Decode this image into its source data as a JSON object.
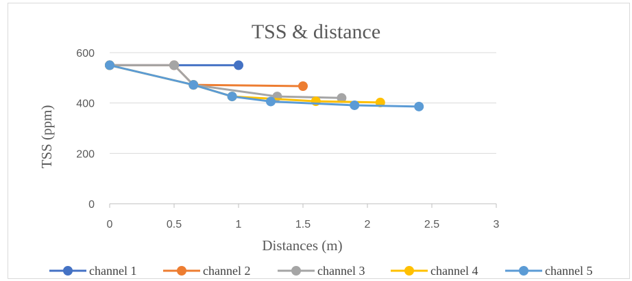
{
  "chart_data": {
    "type": "line",
    "title": "TSS & distance",
    "xlabel": "Distances (m)",
    "ylabel": "TSS (ppm)",
    "xlim": [
      0,
      3
    ],
    "ylim": [
      0,
      600
    ],
    "x_ticks": [
      "0",
      "0.5",
      "1",
      "1.5",
      "2",
      "2.5",
      "3"
    ],
    "y_ticks": [
      "0",
      "200",
      "400",
      "600"
    ],
    "grid": "horizontal",
    "legend": "bottom",
    "series": [
      {
        "name": "channel 1",
        "color": "#4472c4",
        "points": [
          [
            0,
            550
          ],
          [
            0.5,
            550
          ],
          [
            1,
            550
          ]
        ]
      },
      {
        "name": "channel 2",
        "color": "#ed7d31",
        "points": [
          [
            0,
            550
          ],
          [
            0.5,
            550
          ],
          [
            0.65,
            472
          ],
          [
            1.5,
            467
          ]
        ]
      },
      {
        "name": "channel 3",
        "color": "#a5a5a5",
        "points": [
          [
            0,
            550
          ],
          [
            0.5,
            550
          ],
          [
            0.65,
            472
          ],
          [
            1.3,
            426
          ],
          [
            1.8,
            420
          ]
        ]
      },
      {
        "name": "channel 4",
        "color": "#ffc000",
        "points": [
          [
            0,
            550
          ],
          [
            0.65,
            472
          ],
          [
            0.95,
            426
          ],
          [
            1.6,
            407
          ],
          [
            2.1,
            402
          ]
        ]
      },
      {
        "name": "channel 5",
        "color": "#5b9bd5",
        "points": [
          [
            0,
            550
          ],
          [
            0.65,
            472
          ],
          [
            0.95,
            426
          ],
          [
            1.25,
            406
          ],
          [
            1.9,
            391
          ],
          [
            2.4,
            386
          ]
        ]
      }
    ]
  }
}
